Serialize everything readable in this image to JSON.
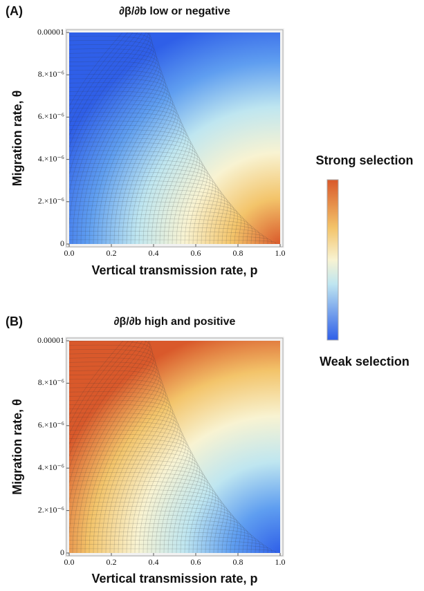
{
  "chart_data": [
    {
      "type": "contour",
      "panel": "(A)",
      "title": "∂β/∂b low or negative",
      "xlabel": "Vertical transmission rate, p",
      "ylabel": "Migration rate, θ",
      "xlim": [
        0,
        1
      ],
      "ylim": [
        0,
        1e-05
      ],
      "xticks": [
        {
          "value": 0,
          "label": "0.0"
        },
        0.2,
        0.4,
        0.6,
        0.8,
        {
          "value": 1,
          "label": "1.0"
        }
      ],
      "yticks": [
        0,
        {
          "value": 2e-06,
          "label": "2.×10⁻⁶"
        },
        {
          "value": 4e-06,
          "label": "4.×10⁻⁶"
        },
        {
          "value": 6e-06,
          "label": "6.×10⁻⁶"
        },
        {
          "value": 8e-06,
          "label": "8.×10⁻⁶"
        },
        1e-05
      ],
      "reverse_colors": false
    },
    {
      "type": "contour",
      "panel": "(B)",
      "title": "∂β/∂b high and positive",
      "xlabel": "Vertical transmission rate, p",
      "ylabel": "Migration rate, θ",
      "xlim": [
        0,
        1
      ],
      "ylim": [
        0,
        1e-05
      ],
      "xticks": [
        {
          "value": 0,
          "label": "0.0"
        },
        0.2,
        0.4,
        0.6,
        0.8,
        {
          "value": 1,
          "label": "1.0"
        }
      ],
      "yticks": [
        0,
        {
          "value": 2e-06,
          "label": "2.×10⁻⁶"
        },
        {
          "value": 4e-06,
          "label": "4.×10⁻⁶"
        },
        {
          "value": 6e-06,
          "label": "6.×10⁻⁶"
        },
        {
          "value": 8e-06,
          "label": "8.×10⁻⁶"
        },
        1e-05
      ],
      "reverse_colors": true
    }
  ],
  "colorbar": {
    "top_label": "Strong selection",
    "bottom_label": "Weak selection"
  }
}
